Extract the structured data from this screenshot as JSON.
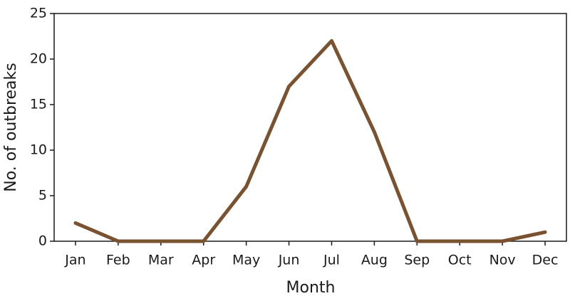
{
  "chart_data": {
    "type": "line",
    "xlabel": "Month",
    "ylabel": "No. of outbreaks",
    "categories": [
      "Jan",
      "Feb",
      "Mar",
      "Apr",
      "May",
      "Jun",
      "Jul",
      "Aug",
      "Sep",
      "Oct",
      "Nov",
      "Dec"
    ],
    "values": [
      2,
      0,
      0,
      0,
      6,
      17,
      22,
      12,
      0,
      0,
      0,
      1
    ],
    "color": "#7a5230",
    "ylim": [
      0,
      25
    ],
    "yticks": [
      0,
      5,
      10,
      15,
      20,
      25
    ],
    "grid": false
  }
}
